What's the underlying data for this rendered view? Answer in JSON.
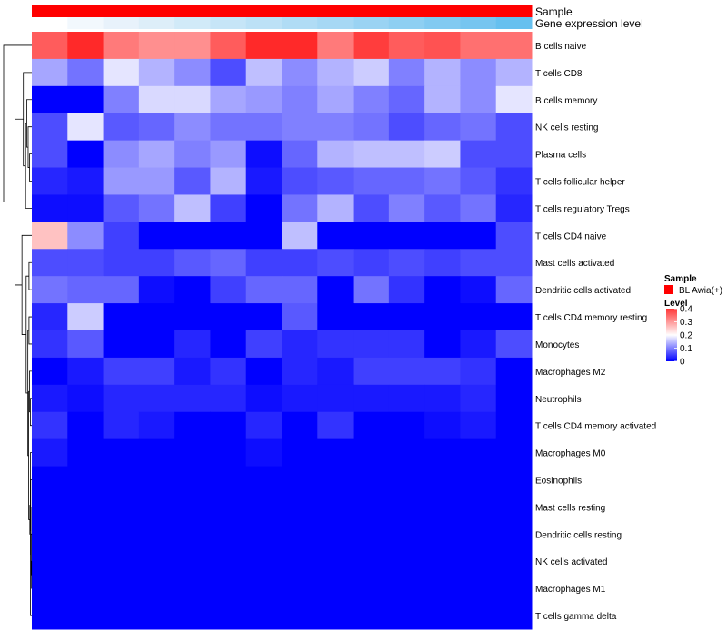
{
  "chart_data": {
    "type": "heatmap",
    "title": "",
    "annotation_rows": [
      {
        "label": "Sample",
        "colors": [
          "#FF0000",
          "#FF0000",
          "#FF0000",
          "#FF0000",
          "#FF0000",
          "#FF0000",
          "#FF0000",
          "#FF0000",
          "#FF0000",
          "#FF0000",
          "#FF0000",
          "#FF0000",
          "#FF0000",
          "#FF0000",
          "#FF0000",
          "#FF0000",
          "#FF0000",
          "#FF0000",
          "#FF0000",
          "#FF0000",
          "#FF0000",
          "#FF0000"
        ]
      },
      {
        "label": "Gene expression level",
        "colors": [
          "#FFFFFF",
          "#F2F8FD",
          "#E8F2FB",
          "#DDEEF9",
          "#D1EAF8",
          "#C6E5F7",
          "#BCE1F6",
          "#B0DCF5",
          "#A6D8F4",
          "#9AD3F3",
          "#8ECFF2",
          "#82CAF1",
          "#76C5F0",
          "#66C0EF"
        ]
      }
    ],
    "columns": 14,
    "rows": [
      "B cells naive",
      "T cells CD8",
      "B cells memory",
      "NK cells resting",
      "Plasma cells",
      "T cells follicular helper",
      "T cells regulatory  Tregs",
      "T cells CD4 naive",
      "Mast cells activated",
      "Dendritic cells activated",
      "T cells CD4 memory resting",
      "Monocytes",
      "Macrophages M2",
      "Neutrophils",
      "T cells CD4 memory activated",
      "Macrophages M0",
      "Eosinophils",
      "Mast cells resting",
      "Dendritic cells resting",
      "NK cells activated",
      "Macrophages M1",
      "T cells gamma delta"
    ],
    "values": [
      [
        0.36,
        0.41,
        0.33,
        0.31,
        0.31,
        0.36,
        0.41,
        0.41,
        0.33,
        0.39,
        0.36,
        0.37,
        0.34,
        0.34
      ],
      [
        0.13,
        0.09,
        0.18,
        0.14,
        0.11,
        0.06,
        0.15,
        0.11,
        0.14,
        0.16,
        0.1,
        0.14,
        0.11,
        0.14
      ],
      [
        0.0,
        0.0,
        0.1,
        0.17,
        0.17,
        0.13,
        0.12,
        0.1,
        0.13,
        0.1,
        0.08,
        0.14,
        0.11,
        0.18
      ],
      [
        0.06,
        0.18,
        0.07,
        0.08,
        0.11,
        0.09,
        0.09,
        0.1,
        0.1,
        0.09,
        0.06,
        0.08,
        0.09,
        0.06
      ],
      [
        0.06,
        0.0,
        0.11,
        0.13,
        0.1,
        0.12,
        0.01,
        0.08,
        0.14,
        0.15,
        0.15,
        0.16,
        0.06,
        0.06
      ],
      [
        0.03,
        0.02,
        0.12,
        0.12,
        0.07,
        0.14,
        0.02,
        0.06,
        0.07,
        0.08,
        0.08,
        0.09,
        0.07,
        0.04
      ],
      [
        0.01,
        0.01,
        0.07,
        0.09,
        0.15,
        0.05,
        0.0,
        0.09,
        0.14,
        0.06,
        0.1,
        0.07,
        0.09,
        0.03
      ],
      [
        0.26,
        0.11,
        0.05,
        0.0,
        0.0,
        0.0,
        0.0,
        0.15,
        0.0,
        0.0,
        0.0,
        0.0,
        0.0,
        0.06
      ],
      [
        0.06,
        0.06,
        0.05,
        0.05,
        0.07,
        0.08,
        0.05,
        0.05,
        0.06,
        0.05,
        0.06,
        0.05,
        0.06,
        0.06
      ],
      [
        0.09,
        0.08,
        0.08,
        0.01,
        0.0,
        0.05,
        0.08,
        0.08,
        0.0,
        0.09,
        0.04,
        0.0,
        0.01,
        0.08
      ],
      [
        0.03,
        0.16,
        0.0,
        0.0,
        0.0,
        0.0,
        0.0,
        0.07,
        0.0,
        0.0,
        0.0,
        0.0,
        0.0,
        0.0
      ],
      [
        0.04,
        0.07,
        0.0,
        0.0,
        0.03,
        0.0,
        0.05,
        0.03,
        0.04,
        0.04,
        0.04,
        0.0,
        0.02,
        0.06
      ],
      [
        0.0,
        0.02,
        0.05,
        0.05,
        0.02,
        0.04,
        0.0,
        0.03,
        0.02,
        0.05,
        0.05,
        0.05,
        0.04,
        0.0
      ],
      [
        0.02,
        0.01,
        0.03,
        0.03,
        0.03,
        0.03,
        0.01,
        0.02,
        0.02,
        0.02,
        0.02,
        0.02,
        0.03,
        0.0
      ],
      [
        0.04,
        0.0,
        0.03,
        0.02,
        0.0,
        0.0,
        0.03,
        0.0,
        0.04,
        0.0,
        0.0,
        0.01,
        0.02,
        0.0
      ],
      [
        0.02,
        0.0,
        0.0,
        0.0,
        0.0,
        0.0,
        0.01,
        0.0,
        0.0,
        0.0,
        0.0,
        0.0,
        0.0,
        0.0
      ],
      [
        0.0,
        0.0,
        0.0,
        0.0,
        0.0,
        0.0,
        0.0,
        0.0,
        0.0,
        0.0,
        0.0,
        0.0,
        0.0,
        0.0
      ],
      [
        0.0,
        0.0,
        0.0,
        0.0,
        0.0,
        0.0,
        0.0,
        0.0,
        0.0,
        0.0,
        0.0,
        0.0,
        0.0,
        0.0
      ],
      [
        0.0,
        0.0,
        0.0,
        0.0,
        0.0,
        0.0,
        0.0,
        0.0,
        0.0,
        0.0,
        0.0,
        0.0,
        0.0,
        0.0
      ],
      [
        0.0,
        0.0,
        0.0,
        0.0,
        0.0,
        0.0,
        0.0,
        0.0,
        0.0,
        0.0,
        0.0,
        0.0,
        0.0,
        0.0
      ],
      [
        0.0,
        0.0,
        0.0,
        0.0,
        0.0,
        0.0,
        0.0,
        0.0,
        0.0,
        0.0,
        0.0,
        0.0,
        0.0,
        0.0
      ],
      [
        0.0,
        0.0,
        0.0,
        0.0,
        0.0,
        0.0,
        0.0,
        0.0,
        0.0,
        0.0,
        0.0,
        0.0,
        0.0,
        0.0
      ]
    ],
    "color_scale": {
      "low": "#0000FF",
      "mid": "#FFFFFF",
      "high": "#FF0000",
      "min": 0,
      "mid_value": 0.2,
      "max": 0.45
    },
    "legend": {
      "sample_title": "Sample",
      "sample_entries": [
        {
          "label": "BL Awia(+)",
          "color": "#FF0000"
        }
      ],
      "level_title": "Level",
      "level_ticks": [
        "0.4",
        "0.3",
        "0.2",
        "0.1",
        "0"
      ],
      "level_tick_values": [
        0.4,
        0.3,
        0.2,
        0.1,
        0
      ]
    },
    "dendrogram": "row",
    "grid": false
  }
}
